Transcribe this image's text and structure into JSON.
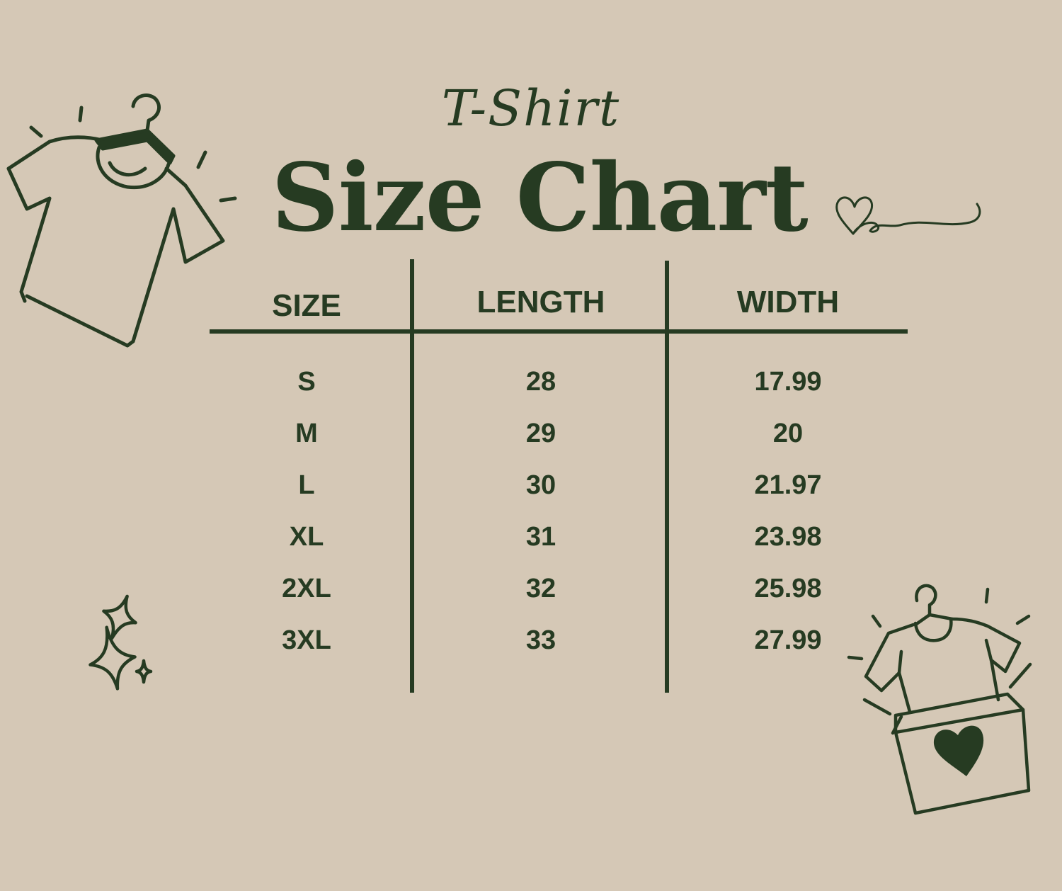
{
  "title": {
    "script": "T-Shirt",
    "main": "Size Chart"
  },
  "table": {
    "headers": [
      "SIZE",
      "LENGTH",
      "WIDTH"
    ],
    "rows": [
      [
        "S",
        "28",
        "17.99"
      ],
      [
        "M",
        "29",
        "20"
      ],
      [
        "L",
        "30",
        "21.97"
      ],
      [
        "XL",
        "31",
        "23.98"
      ],
      [
        "2XL",
        "32",
        "25.98"
      ],
      [
        "3XL",
        "33",
        "27.99"
      ]
    ]
  },
  "colors": {
    "background": "#d5c8b6",
    "ink": "#263b22"
  },
  "icons": [
    "tshirt-on-hanger-icon",
    "heart-flourish-icon",
    "sparkles-icon",
    "tshirt-gift-box-icon"
  ]
}
